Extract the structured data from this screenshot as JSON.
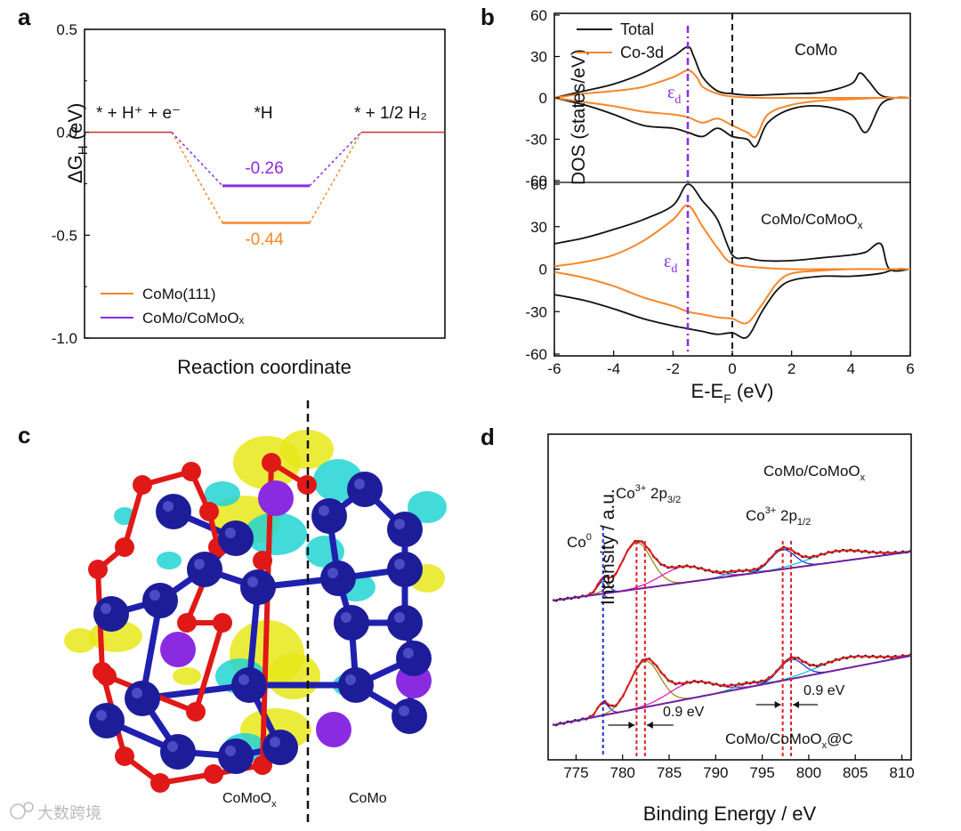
{
  "panels": {
    "a": {
      "letter": "a",
      "chart_data": {
        "type": "line",
        "title": "",
        "xlabel": "Reaction coordinate",
        "ylabel": "ΔG",
        "ylabel_sub": "H",
        "ylabel_unit": " (eV)",
        "ylim": [
          -1.0,
          0.5
        ],
        "yticks": [
          0.5,
          0.0,
          -0.5,
          -1.0
        ],
        "ytick_labels": [
          "0.5",
          "0.0",
          "-0.5",
          "-1.0"
        ],
        "states": [
          "* + H⁺ + e⁻",
          "*H",
          "* + 1/2 H₂"
        ],
        "series": [
          {
            "name": "CoMo(111)",
            "color": "#f5872a",
            "values": [
              0.0,
              -0.44,
              0.0
            ]
          },
          {
            "name": "CoMo/CoMoOx",
            "color": "#8a2be2",
            "values": [
              0.0,
              -0.26,
              0.0
            ]
          }
        ],
        "value_labels": [
          "-0.26",
          "-0.44"
        ],
        "legend": [
          "CoMo(111)",
          "CoMo/CoMoOₓ"
        ],
        "legend_position": "bottom-left"
      }
    },
    "b": {
      "letter": "b",
      "chart_data": {
        "type": "line",
        "xlabel": "E-E",
        "xlabel_sub": "F",
        "xlabel_unit": " (eV)",
        "ylabel": "DOS (states/eV)",
        "xlim": [
          -6,
          6
        ],
        "xticks": [
          -6,
          -4,
          -2,
          0,
          2,
          4,
          6
        ],
        "ylim": [
          -60,
          60
        ],
        "yticks": [
          60,
          30,
          0,
          -30,
          -60
        ],
        "legend": [
          "Total",
          "Co-3d"
        ],
        "legend_position": "top-left",
        "subplots": [
          {
            "name": "CoMo",
            "d_band_center": -1.5,
            "annotation": "ε",
            "annotation_sub": "d",
            "total_up": {
              "x": [
                -6,
                -5,
                -4,
                -3,
                -2,
                -1.5,
                -1.3,
                -1,
                -0.5,
                0,
                0.5,
                1,
                2,
                3,
                4,
                4.3,
                4.6,
                5,
                5.5,
                6
              ],
              "y": [
                0,
                5,
                10,
                18,
                30,
                37,
                30,
                15,
                5,
                3,
                2,
                2,
                3,
                4,
                10,
                18,
                12,
                2,
                0,
                0
              ]
            },
            "total_down": {
              "x": [
                -6,
                -5,
                -4,
                -3,
                -2,
                -1.5,
                -1,
                -0.5,
                0,
                0.5,
                0.8,
                1.2,
                2,
                3,
                4,
                4.5,
                5,
                5.5,
                6
              ],
              "y": [
                0,
                -5,
                -12,
                -20,
                -22,
                -25,
                -28,
                -22,
                -28,
                -30,
                -35,
                -18,
                -8,
                -6,
                -12,
                -25,
                -5,
                0,
                0
              ]
            },
            "d_up": {
              "x": [
                -6,
                -5,
                -4,
                -3,
                -2,
                -1.5,
                -1.2,
                -1,
                -0.5,
                0,
                1,
                2,
                3,
                4,
                5,
                6
              ],
              "y": [
                0,
                3,
                5,
                8,
                15,
                20,
                15,
                8,
                3,
                1,
                0,
                0,
                0,
                0,
                0,
                0
              ]
            },
            "d_down": {
              "x": [
                -6,
                -5,
                -4,
                -3,
                -2,
                -1.5,
                -1,
                -0.5,
                0,
                0.5,
                0.8,
                1.2,
                2,
                3,
                4,
                5,
                6
              ],
              "y": [
                0,
                -3,
                -6,
                -10,
                -12,
                -14,
                -18,
                -15,
                -20,
                -25,
                -28,
                -12,
                -5,
                -2,
                -1,
                0,
                0
              ]
            }
          },
          {
            "name": "CoMo/CoMoO",
            "name_sub": "x",
            "d_band_center": -1.5,
            "annotation": "ε",
            "annotation_sub": "d",
            "total_up": {
              "x": [
                -6,
                -5,
                -4,
                -3,
                -2,
                -1.5,
                -1,
                -0.5,
                0,
                0.5,
                1,
                2,
                3,
                4,
                4.5,
                5,
                5.3,
                6
              ],
              "y": [
                18,
                22,
                28,
                35,
                45,
                60,
                48,
                35,
                10,
                8,
                6,
                6,
                8,
                10,
                12,
                18,
                0,
                0
              ]
            },
            "total_down": {
              "x": [
                -6,
                -5,
                -4,
                -3,
                -2,
                -1.5,
                -1,
                -0.5,
                0,
                0.5,
                1,
                1.5,
                2,
                3,
                4,
                5,
                5.5,
                6
              ],
              "y": [
                -18,
                -22,
                -28,
                -35,
                -40,
                -42,
                -44,
                -46,
                -45,
                -48,
                -30,
                -15,
                -8,
                -5,
                -5,
                -3,
                0,
                0
              ]
            },
            "d_up": {
              "x": [
                -6,
                -5,
                -4,
                -3,
                -2,
                -1.5,
                -1,
                -0.5,
                0,
                1,
                2,
                3,
                4,
                5,
                6
              ],
              "y": [
                2,
                5,
                10,
                20,
                35,
                45,
                30,
                15,
                4,
                1,
                0,
                0,
                0,
                0,
                0
              ]
            },
            "d_down": {
              "x": [
                -6,
                -5,
                -4,
                -3,
                -2,
                -1.5,
                -1,
                -0.5,
                0,
                0.5,
                1,
                1.5,
                2,
                3,
                4,
                5,
                6
              ],
              "y": [
                -2,
                -6,
                -12,
                -20,
                -26,
                -30,
                -32,
                -34,
                -35,
                -38,
                -25,
                -10,
                -3,
                -1,
                0,
                0,
                0
              ]
            }
          }
        ]
      }
    },
    "c": {
      "letter": "c",
      "left_label": "CoMoO",
      "left_label_sub": "x",
      "right_label": "CoMo",
      "colors": {
        "co": "#1d1d9a",
        "o": "#e01818",
        "mo": "#8a2be2",
        "iso_yellow": "#e8e81a",
        "iso_cyan": "#22d3d3"
      }
    },
    "d": {
      "letter": "d",
      "chart_data": {
        "type": "line",
        "xlabel": "Binding Energy / eV",
        "ylabel": "Intensity / a.u.",
        "xlim": [
          772,
          811
        ],
        "xticks": [
          775,
          780,
          785,
          790,
          795,
          800,
          805,
          810
        ],
        "labels": {
          "co0": "Co",
          "co0_sup": "0",
          "co3_32": "Co",
          "co3_32_sup": "3+",
          "co3_32_tail": " 2p",
          "co3_32_sub": "3/2",
          "co3_12": "Co",
          "co3_12_sup": "3+",
          "co3_12_tail": " 2p",
          "co3_12_sub": "1/2",
          "shift_left": "0.9 eV",
          "shift_right": "0.9 eV",
          "top_sample": "CoMo/CoMoO",
          "top_sample_sub": "x",
          "bottom_sample": "CoMo/CoMoO",
          "bottom_sample_sub": "x",
          "bottom_sample_tail": "@C"
        },
        "peak_positions": {
          "co0": 777.9,
          "co3_32_top": 781.5,
          "co3_32_bottom": 782.4,
          "co3_12_top": 797.2,
          "co3_12_bottom": 798.1
        }
      }
    }
  },
  "watermark": "大数跨境"
}
